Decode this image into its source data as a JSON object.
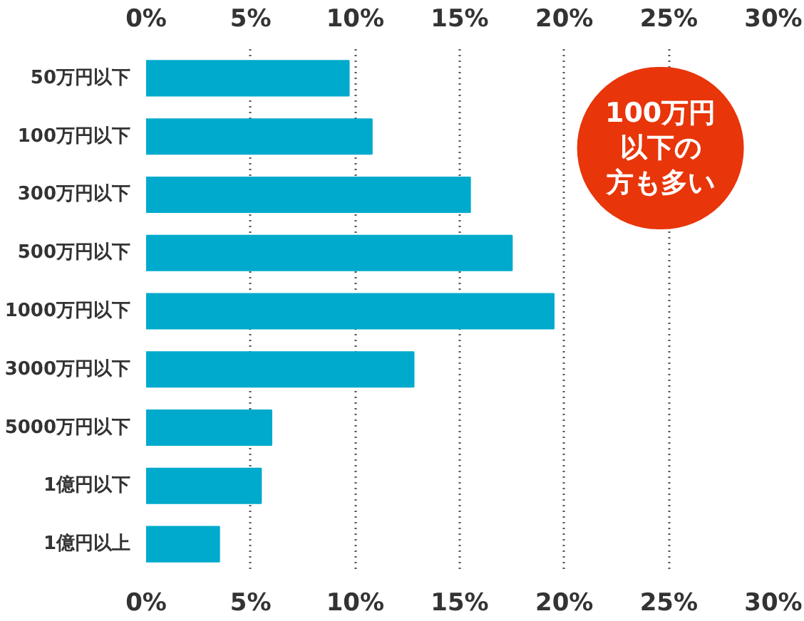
{
  "chart_data": {
    "type": "bar",
    "orientation": "horizontal",
    "categories": [
      "50万円以下",
      "100万円以下",
      "300万円以下",
      "500万円以下",
      "1000万円以下",
      "3000万円以下",
      "5000万円以下",
      "1億円以下",
      "1億円以上"
    ],
    "values": [
      9.7,
      10.8,
      15.5,
      17.5,
      19.5,
      12.8,
      6.0,
      5.5,
      3.5
    ],
    "color": "#00aacc",
    "xlim": [
      0,
      30
    ],
    "xticks": [
      {
        "value": 0,
        "label": "0%"
      },
      {
        "value": 5,
        "label": "5%"
      },
      {
        "value": 10,
        "label": "10%"
      },
      {
        "value": 15,
        "label": "15%"
      },
      {
        "value": 20,
        "label": "20%"
      },
      {
        "value": 25,
        "label": "25%"
      },
      {
        "value": 30,
        "label": "30%"
      }
    ],
    "x2lim": [
      0,
      30
    ],
    "x2ticks": [
      {
        "value": 0,
        "label": "0%"
      },
      {
        "value": 5,
        "label": "5%"
      },
      {
        "value": 10,
        "label": "10%"
      },
      {
        "value": 15,
        "label": "15%"
      },
      {
        "value": 20,
        "label": "20%"
      },
      {
        "value": 25,
        "label": "25%"
      },
      {
        "value": 30,
        "label": "30%"
      }
    ],
    "grid": "x",
    "annotations": [
      "100万円",
      "以下の",
      "方も多い"
    ]
  }
}
